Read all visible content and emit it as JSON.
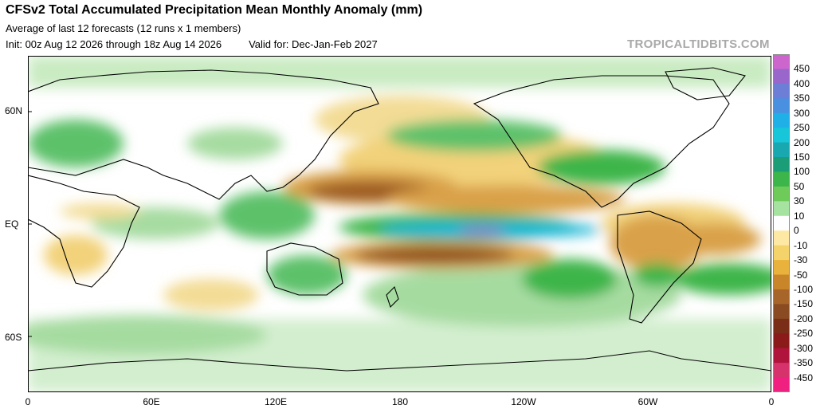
{
  "header": {
    "title": "CFSv2 Total Accumulated Precipitation Mean Monthly Anomaly (mm)",
    "subtitle": "Average of last 12 forecasts (12 runs x 1 members)",
    "init": "Init: 00z Aug 12 2026 through 18z Aug 14 2026",
    "valid": "Valid for: Dec-Jan-Feb 2027",
    "brand": "TROPICALTIDBITS.COM"
  },
  "map": {
    "lat_labels": [
      "60N",
      "EQ",
      "60S"
    ],
    "lon_labels": [
      "0",
      "60E",
      "120E",
      "180",
      "120W",
      "60W",
      "0"
    ],
    "colors": {
      "ocean_wet_strong": "#1fb8d6",
      "ocean_wet_core": "#9370c4",
      "wet_green": "#3cb54a",
      "wet_light_green": "#a6dba0",
      "dry_yellow": "#f0d27a",
      "dry_orange": "#d99a2b",
      "dry_brown": "#8a4a1c",
      "coastline": "#000000"
    }
  },
  "colorbar": {
    "labels": [
      "450",
      "400",
      "350",
      "300",
      "250",
      "200",
      "150",
      "100",
      "50",
      "30",
      "10",
      "0",
      "-10",
      "-30",
      "-50",
      "-100",
      "-150",
      "-200",
      "-250",
      "-300",
      "-350",
      "-450"
    ],
    "colors": [
      "#cc66cc",
      "#9966cc",
      "#6c7ed6",
      "#4a90e0",
      "#1fb0e8",
      "#17c6d8",
      "#1aa8b0",
      "#1b9e77",
      "#3cb54a",
      "#6ecb5a",
      "#a6e3a0",
      "#ffffff",
      "#fde9a3",
      "#f5d36b",
      "#e8b23c",
      "#c9852a",
      "#a8652a",
      "#8a4a22",
      "#7a2e18",
      "#8b1a1a",
      "#b0143c",
      "#d6336c",
      "#f02080"
    ]
  }
}
